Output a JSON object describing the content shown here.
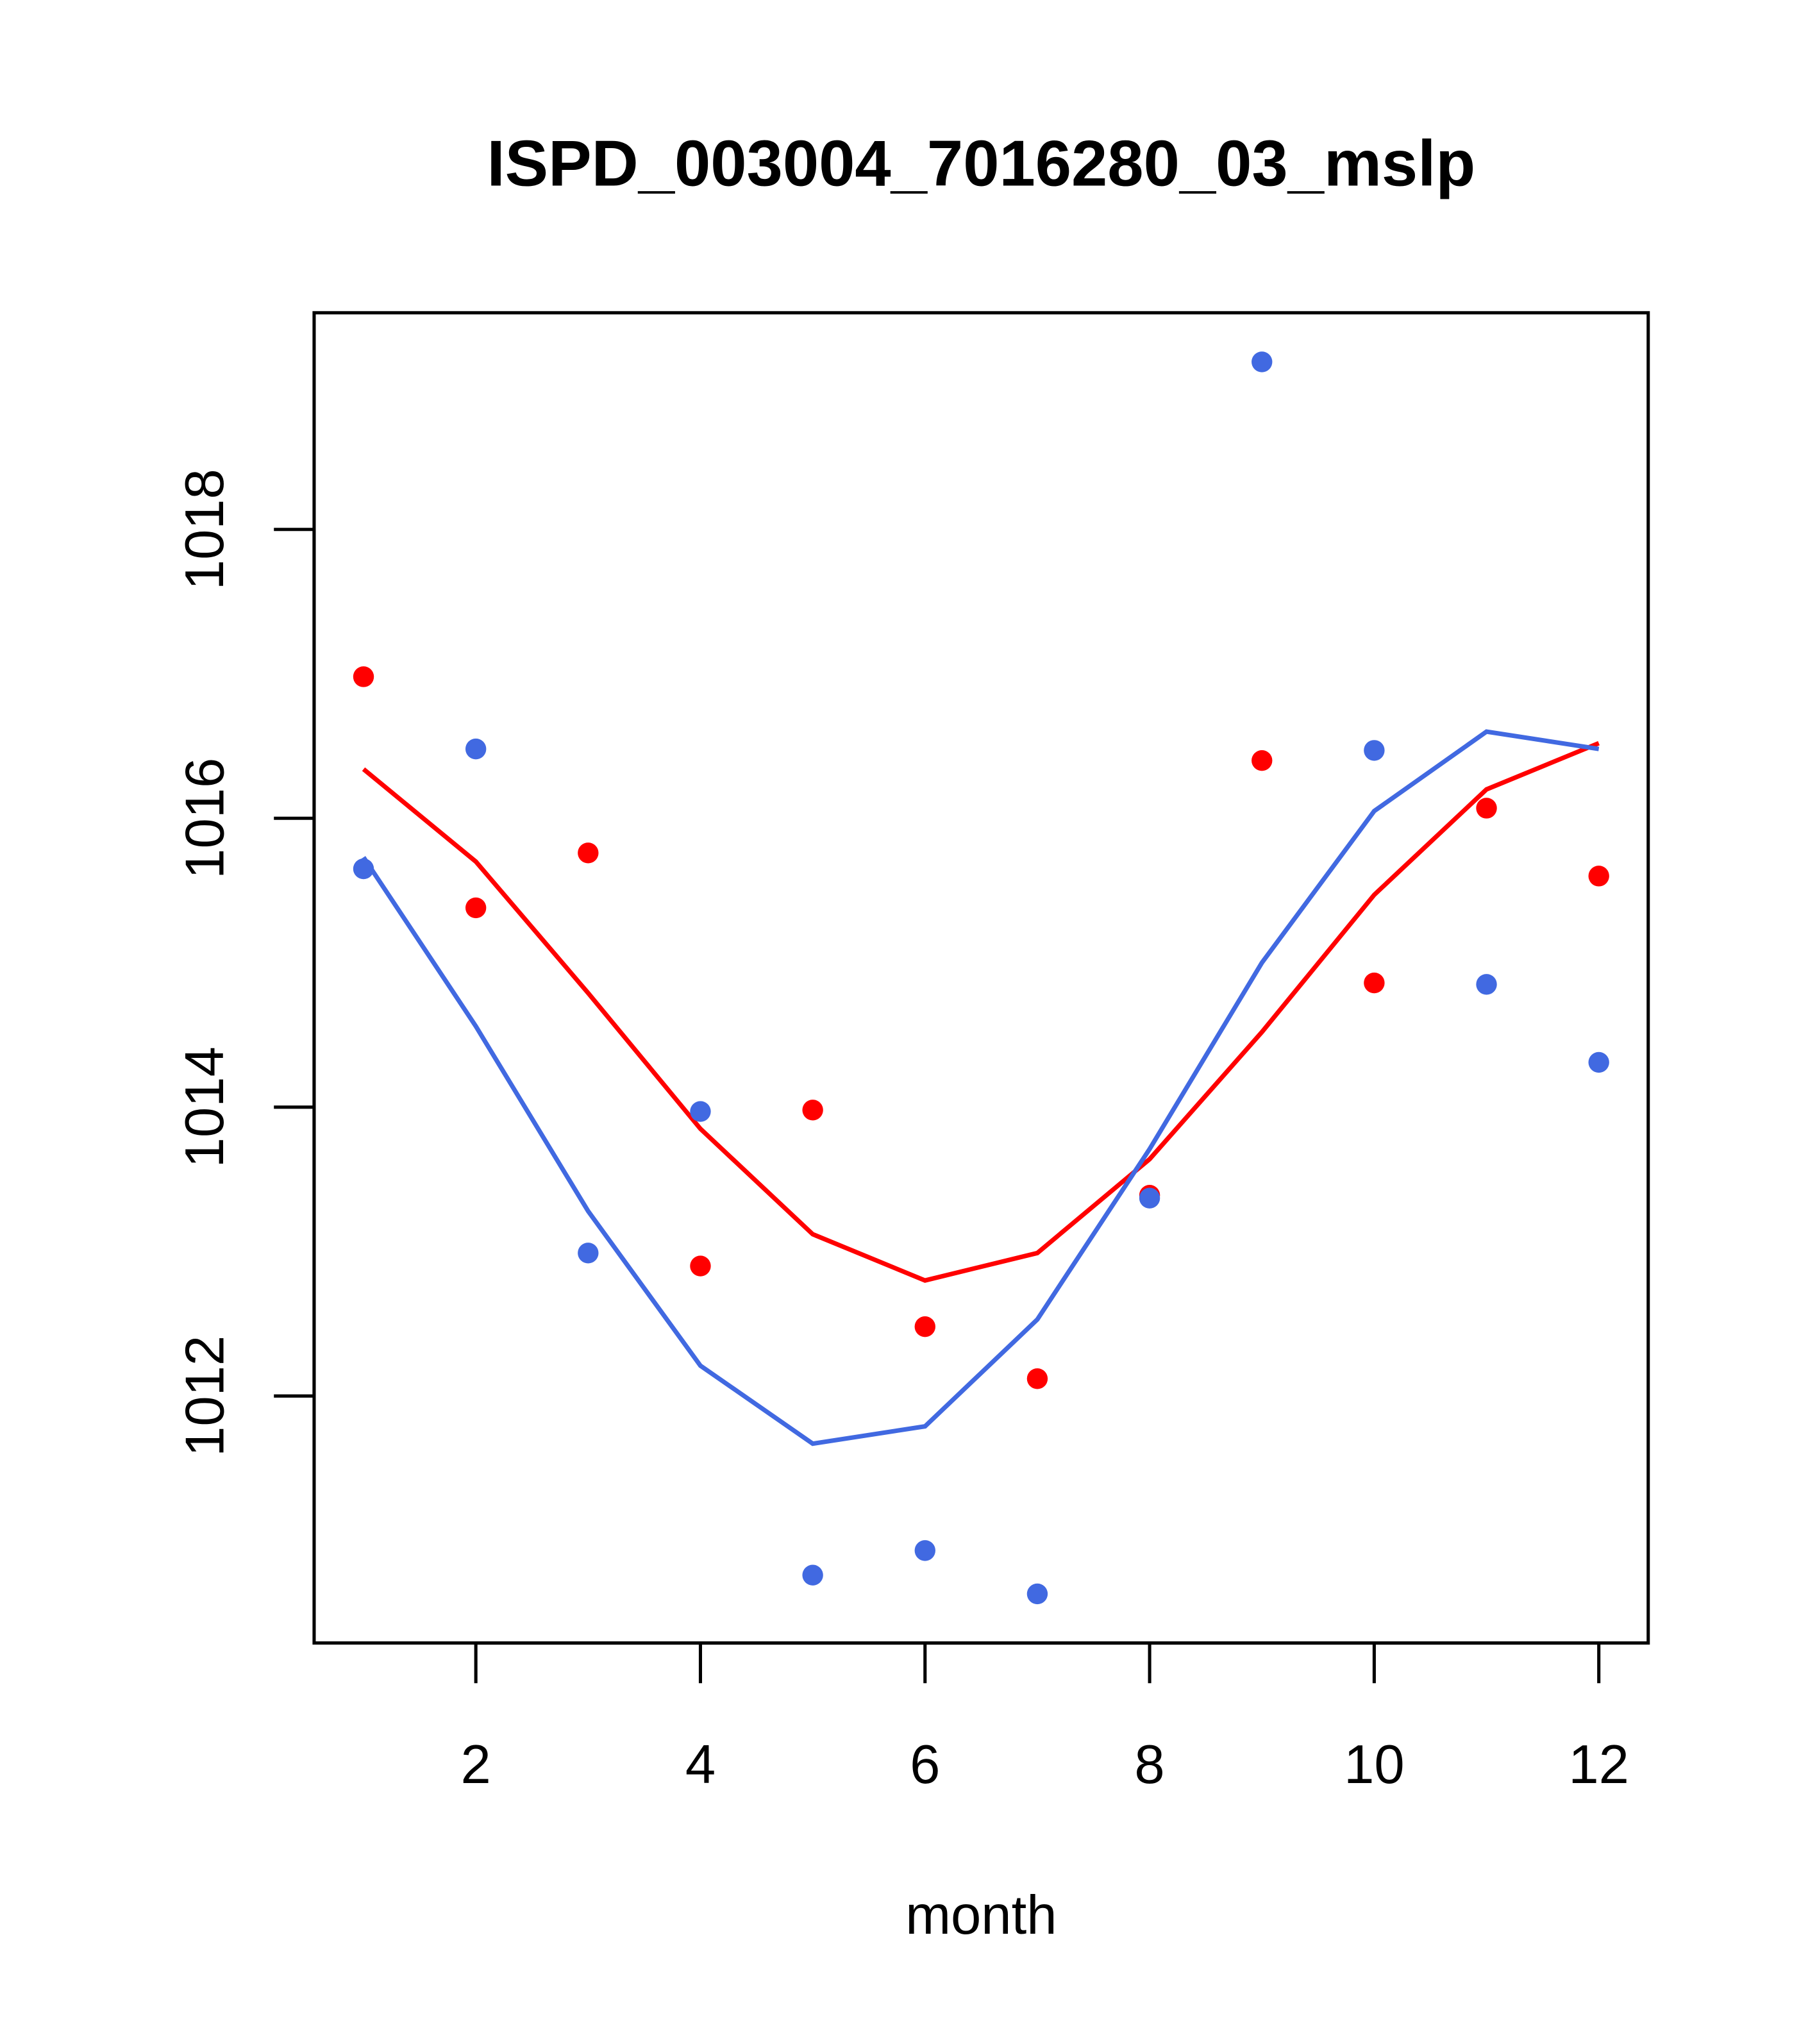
{
  "chart_data": {
    "type": "scatter",
    "title": "ISPD_003004_7016280_03_mslp",
    "xlabel": "month",
    "ylabel": "",
    "xlim": [
      0.56,
      12.44
    ],
    "ylim": [
      1010.29,
      1019.5
    ],
    "x_ticks": [
      2,
      4,
      6,
      8,
      10,
      12
    ],
    "x_tick_labels": [
      "2",
      "4",
      "6",
      "8",
      "10",
      "12"
    ],
    "y_ticks": [
      1012,
      1014,
      1016,
      1018
    ],
    "y_tick_labels": [
      "1012",
      "1014",
      "1016",
      "1018"
    ],
    "grid": false,
    "x": [
      1,
      2,
      3,
      4,
      5,
      6,
      7,
      8,
      9,
      10,
      11,
      12
    ],
    "series": [
      {
        "name": "red",
        "color": "#FF0000",
        "points": [
          1016.98,
          1015.38,
          1015.76,
          1012.9,
          1013.98,
          1012.48,
          1012.12,
          1013.39,
          1016.4,
          1014.86,
          1016.07,
          1015.6
        ],
        "line": [
          1016.34,
          1015.7,
          1014.79,
          1013.85,
          1013.12,
          1012.8,
          1012.99,
          1013.64,
          1014.52,
          1015.47,
          1016.2,
          1016.52
        ]
      },
      {
        "name": "blue",
        "color": "#4169E1",
        "points": [
          1015.65,
          1016.48,
          1012.99,
          1013.97,
          1010.76,
          1010.93,
          1010.63,
          1013.37,
          1019.16,
          1016.47,
          1014.85,
          1014.31
        ],
        "line": [
          1015.73,
          1014.56,
          1013.28,
          1012.21,
          1011.67,
          1011.79,
          1012.53,
          1013.71,
          1015.0,
          1016.05,
          1016.6,
          1016.48
        ]
      }
    ]
  }
}
